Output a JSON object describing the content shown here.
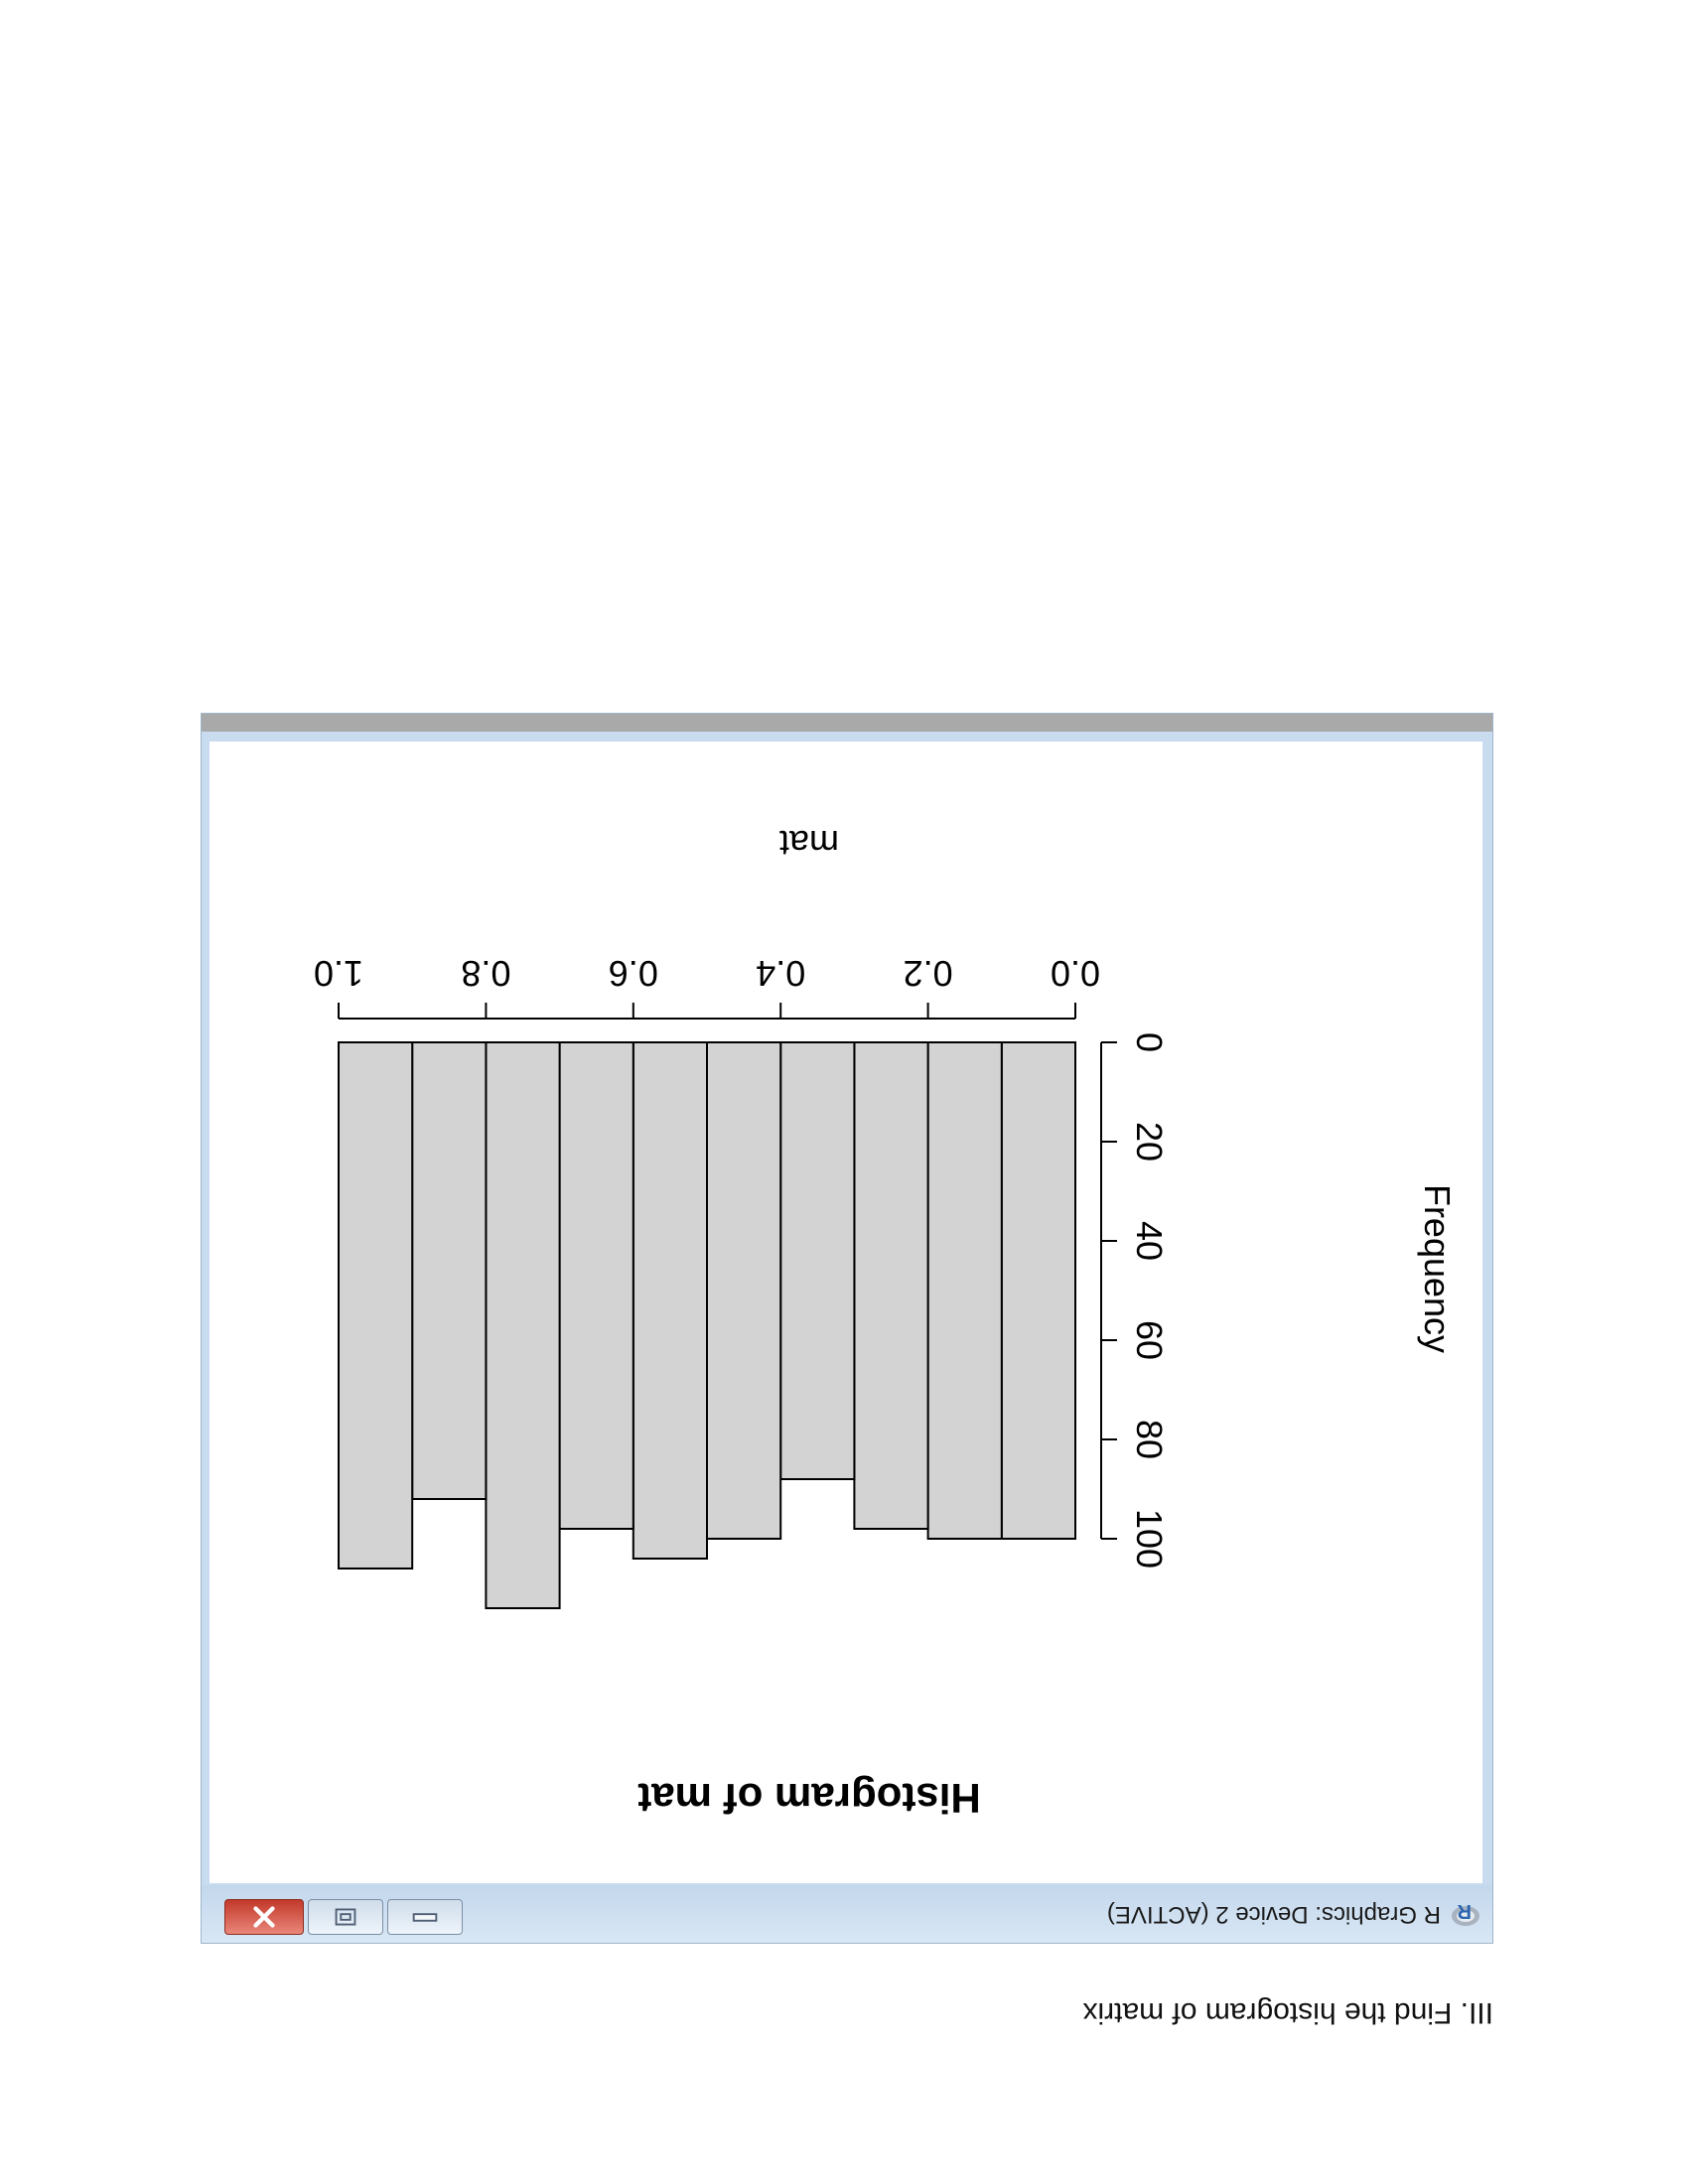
{
  "caption": "III. Find the histogram of matrix",
  "window": {
    "title": "R Graphics: Device 2 (ACTIVE)",
    "buttons": {
      "minimize": "minimize-icon",
      "maximize": "maximize-icon",
      "close": "close-icon"
    }
  },
  "chart_data": {
    "type": "bar",
    "title": "Histogram of mat",
    "xlabel": "mat",
    "ylabel": "Frequency",
    "bins": [
      [
        0.0,
        0.1
      ],
      [
        0.1,
        0.2
      ],
      [
        0.2,
        0.3
      ],
      [
        0.3,
        0.4
      ],
      [
        0.4,
        0.5
      ],
      [
        0.5,
        0.6
      ],
      [
        0.6,
        0.7
      ],
      [
        0.7,
        0.8
      ],
      [
        0.8,
        0.9
      ],
      [
        0.9,
        1.0
      ]
    ],
    "values": [
      100,
      100,
      98,
      88,
      100,
      104,
      98,
      114,
      92,
      106
    ],
    "xticks": [
      "0.0",
      "0.2",
      "0.4",
      "0.6",
      "0.8",
      "1.0"
    ],
    "yticks": [
      "0",
      "20",
      "40",
      "60",
      "80",
      "100"
    ],
    "xlim": [
      0,
      1
    ],
    "ylim": [
      0,
      100
    ],
    "bar_color": "#d3d3d3",
    "grid": false
  }
}
